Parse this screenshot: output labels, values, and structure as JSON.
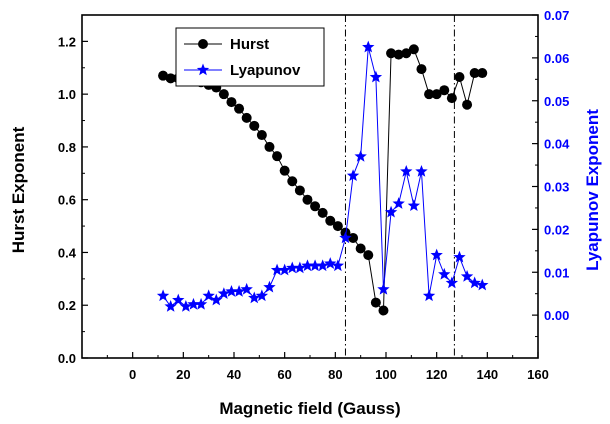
{
  "chart_data": {
    "type": "scatter",
    "xlabel": "Magnetic field (Gauss)",
    "ylabel_left": "Hurst Exponent",
    "ylabel_right": "Lyapunov Exponent",
    "xlim": [
      -20,
      160
    ],
    "ylim_left": [
      0.0,
      1.3
    ],
    "ylim_right": [
      -0.01,
      0.07
    ],
    "x_ticks": [
      0,
      20,
      40,
      60,
      80,
      100,
      120,
      140,
      160
    ],
    "y_left_ticks": [
      0.0,
      0.2,
      0.4,
      0.6,
      0.8,
      1.0,
      1.2
    ],
    "y_right_ticks": [
      0.0,
      0.01,
      0.02,
      0.03,
      0.04,
      0.05,
      0.06,
      0.07
    ],
    "x_tick_labels": [
      "0",
      "20",
      "40",
      "60",
      "80",
      "100",
      "120",
      "140",
      "160"
    ],
    "y_left_tick_labels": [
      "0.0",
      "0.2",
      "0.4",
      "0.6",
      "0.8",
      "1.0",
      "1.2"
    ],
    "y_right_tick_labels": [
      "0.00",
      "0.01",
      "0.02",
      "0.03",
      "0.04",
      "0.05",
      "0.06",
      "0.07"
    ],
    "vlines": [
      84,
      127
    ],
    "legend_position": "top-left-center",
    "series": [
      {
        "name": "Hurst",
        "axis": "left",
        "color": "#000000",
        "marker": "circle",
        "x": [
          12,
          15,
          18,
          21,
          24,
          27,
          30,
          33,
          36,
          39,
          42,
          45,
          48,
          51,
          54,
          57,
          60,
          63,
          66,
          69,
          72,
          75,
          78,
          81,
          84,
          87,
          90,
          93,
          96,
          99,
          102,
          105,
          108,
          111,
          114,
          117,
          120,
          123,
          126,
          129,
          132,
          135,
          138
        ],
        "y": [
          1.07,
          1.06,
          1.06,
          1.055,
          1.05,
          1.045,
          1.035,
          1.025,
          1.0,
          0.97,
          0.945,
          0.91,
          0.88,
          0.845,
          0.8,
          0.765,
          0.71,
          0.67,
          0.635,
          0.6,
          0.575,
          0.55,
          0.52,
          0.5,
          0.475,
          0.455,
          0.415,
          0.39,
          0.21,
          0.18,
          1.155,
          1.15,
          1.155,
          1.17,
          1.095,
          1.0,
          1.0,
          1.015,
          0.985,
          1.065,
          0.96,
          1.08,
          1.08
        ]
      },
      {
        "name": "Lyapunov",
        "axis": "right",
        "color": "#0000ff",
        "marker": "star",
        "x": [
          12,
          15,
          18,
          21,
          24,
          27,
          30,
          33,
          36,
          39,
          42,
          45,
          48,
          51,
          54,
          57,
          60,
          63,
          66,
          69,
          72,
          75,
          78,
          81,
          84,
          87,
          90,
          93,
          96,
          99,
          102,
          105,
          108,
          111,
          114,
          117,
          120,
          123,
          126,
          129,
          132,
          135,
          138
        ],
        "y": [
          0.0045,
          0.002,
          0.0035,
          0.002,
          0.0025,
          0.0025,
          0.0045,
          0.0035,
          0.005,
          0.0055,
          0.0055,
          0.006,
          0.004,
          0.0045,
          0.0065,
          0.0105,
          0.0105,
          0.011,
          0.011,
          0.0115,
          0.0115,
          0.0115,
          0.012,
          0.0115,
          0.018,
          0.0325,
          0.037,
          0.0625,
          0.0555,
          0.006,
          0.024,
          0.026,
          0.0335,
          0.0255,
          0.0335,
          0.0045,
          0.014,
          0.0095,
          0.0075,
          0.0135,
          0.009,
          0.0075,
          0.007
        ]
      }
    ]
  }
}
